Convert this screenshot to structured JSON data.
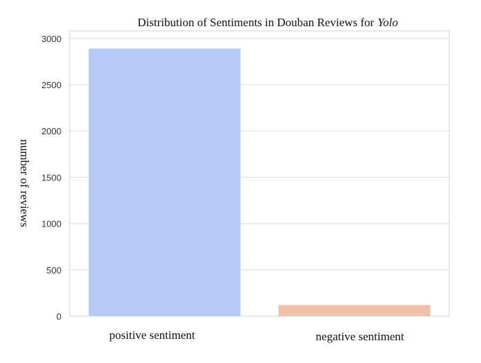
{
  "chart_data": {
    "type": "bar",
    "title": "Distribution of Sentiments in Douban Reviews for",
    "title_italic": "Yolo",
    "xlabel": "",
    "ylabel": "number of reviews",
    "categories": [
      "positive sentiment",
      "negative sentiment"
    ],
    "values": [
      2890,
      120
    ],
    "ylim": [
      0,
      3080
    ],
    "yticks": [
      0,
      500,
      1000,
      1500,
      2000,
      2500,
      3000
    ],
    "grid": true,
    "legend": "none",
    "colors": [
      "#b5caf4",
      "#f2bfa9"
    ]
  }
}
